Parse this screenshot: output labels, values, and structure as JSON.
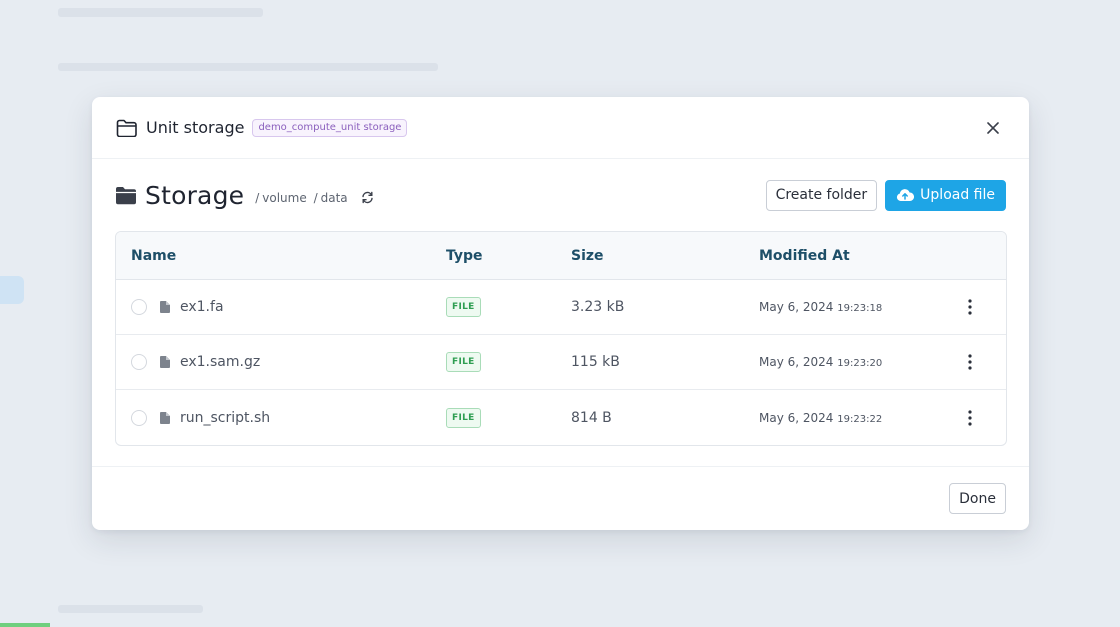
{
  "modal": {
    "title": "Unit storage",
    "tag": "demo_compute_unit storage",
    "close_icon": "close-icon"
  },
  "toolbar": {
    "storage_title": "Storage",
    "breadcrumb": [
      "volume",
      "data"
    ],
    "create_folder_label": "Create folder",
    "upload_file_label": "Upload file"
  },
  "table": {
    "columns": [
      "Name",
      "Type",
      "Size",
      "Modified At"
    ],
    "rows": [
      {
        "name": "ex1.fa",
        "type": "FILE",
        "size": "3.23 kB",
        "date": "May 6, 2024",
        "time": "19:23:18"
      },
      {
        "name": "ex1.sam.gz",
        "type": "FILE",
        "size": "115 kB",
        "date": "May 6, 2024",
        "time": "19:23:20"
      },
      {
        "name": "run_script.sh",
        "type": "FILE",
        "size": "814 B",
        "date": "May 6, 2024",
        "time": "19:23:22"
      }
    ]
  },
  "footer": {
    "done_label": "Done"
  },
  "colors": {
    "primary": "#1ea5e6",
    "header_text": "#1e4f68",
    "tag": "#8a5fbd",
    "badge": "#2f9e52"
  }
}
